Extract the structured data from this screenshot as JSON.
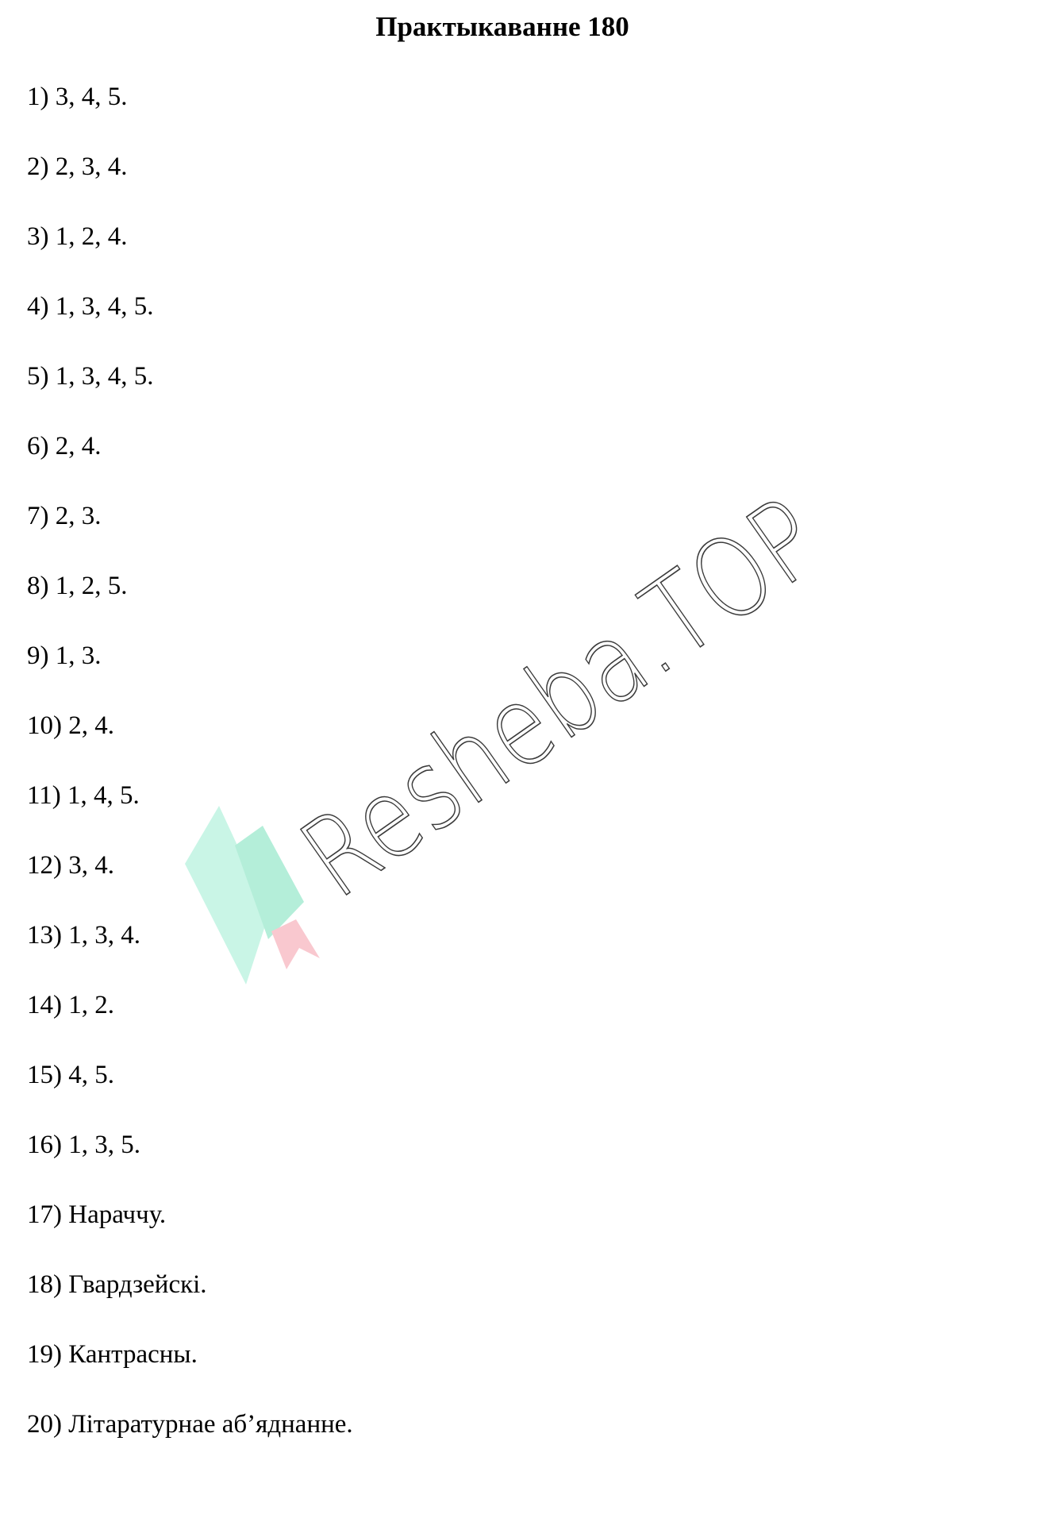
{
  "title": "Практыкаванне 180",
  "answers": [
    "1) 3, 4, 5.",
    "2) 2, 3, 4.",
    "3) 1, 2, 4.",
    "4) 1, 3, 4, 5.",
    "5) 1, 3, 4, 5.",
    "6) 2, 4.",
    "7) 2, 3.",
    "8) 1, 2, 5.",
    "9) 1, 3.",
    "10) 2, 4.",
    "11) 1, 4, 5.",
    "12) 3, 4.",
    "13) 1, 3, 4.",
    "14) 1, 2.",
    "15) 4, 5.",
    "16) 1, 3, 5.",
    "17) Нараччу.",
    "18) Гвардзейскі.",
    "19) Кантрасны.",
    "20) Літаратурнае аб’яднанне."
  ],
  "watermark": {
    "text": "Resheba.TOP",
    "logo_icon": "book-bookmark-logo-icon",
    "colors": {
      "book_light": "#c9f5e6",
      "book_dark": "#b4eed9",
      "bookmark": "#f9c8cf",
      "text": "#3a3a3a"
    }
  }
}
